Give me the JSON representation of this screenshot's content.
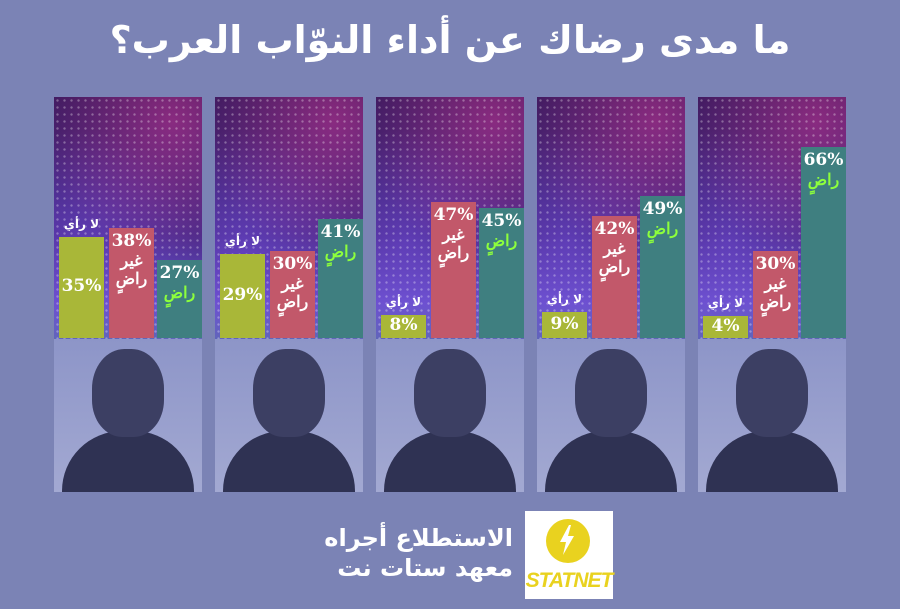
{
  "title": "ما مدى رضاك عن أداء النوّاب العرب؟",
  "labels": {
    "satisfied": "راضٍ",
    "not_satisfied_line1": "غير",
    "not_satisfied_line2": "راضٍ",
    "no_opinion": "لا رأي"
  },
  "chart_data": {
    "type": "bar",
    "series": [
      {
        "name": "راضٍ",
        "color": "#3f7f80"
      },
      {
        "name": "غير راضٍ",
        "color": "#c2586a"
      },
      {
        "name": "لا رأي",
        "color": "#a9b738"
      }
    ],
    "panels": [
      {
        "satisfied": 66,
        "not_satisfied": 30,
        "no_opinion": 4
      },
      {
        "satisfied": 49,
        "not_satisfied": 42,
        "no_opinion": 9
      },
      {
        "satisfied": 45,
        "not_satisfied": 47,
        "no_opinion": 8
      },
      {
        "satisfied": 41,
        "not_satisfied": 30,
        "no_opinion": 29
      },
      {
        "satisfied": 27,
        "not_satisfied": 38,
        "no_opinion": 35
      }
    ],
    "ylim": [
      0,
      70
    ]
  },
  "credit": {
    "line1": "الاستطلاع أجراه",
    "line2": "معهد ستات نت"
  },
  "logo": {
    "text": "STATNET"
  },
  "colors": {
    "background": "#7b83b5",
    "logo_yellow": "#e9d21f"
  }
}
